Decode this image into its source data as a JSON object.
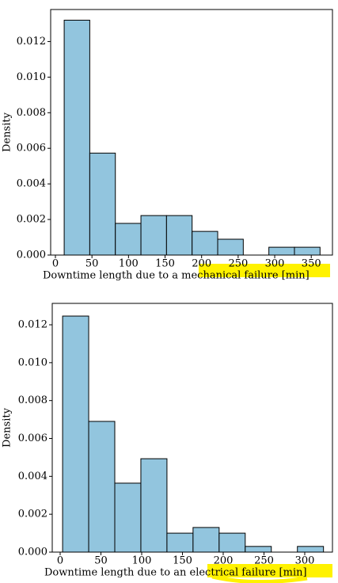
{
  "chart_data": [
    {
      "type": "histogram",
      "xlabel": "Downtime length due to a mechanical failure [min]",
      "ylabel": "Density",
      "bins": [
        12,
        47,
        82,
        117,
        152,
        187,
        222,
        257,
        292,
        327,
        362
      ],
      "values": [
        0.0132,
        0.00573,
        0.00178,
        0.00222,
        0.00222,
        0.00133,
        0.00089,
        0,
        0.00044,
        0.00044
      ],
      "color": "#92c5de",
      "edgecolor": "#000000",
      "xlim": [
        -6.5,
        379
      ],
      "xticks": [
        0,
        50,
        100,
        150,
        200,
        250,
        300,
        350
      ],
      "ylim": [
        0,
        0.0138
      ],
      "yticks": [
        {
          "value": 0,
          "label": "0.000"
        },
        {
          "value": 0.002,
          "label": "0.002"
        },
        {
          "value": 0.004,
          "label": "0.004"
        },
        {
          "value": 0.006,
          "label": "0.006"
        },
        {
          "value": 0.008,
          "label": "0.008"
        },
        {
          "value": 0.01,
          "label": "0.010"
        },
        {
          "value": 0.012,
          "label": "0.012"
        }
      ]
    },
    {
      "type": "histogram",
      "xlabel": "Downtime length due to an electrical failure [min]",
      "ylabel": "Density",
      "bins": [
        3,
        35,
        67,
        99,
        131,
        163,
        195,
        227,
        259,
        291,
        323
      ],
      "values": [
        0.01246,
        0.0069,
        0.00364,
        0.00493,
        0.001,
        0.0013,
        0.001,
        0.0003,
        0,
        0.0003
      ],
      "color": "#92c5de",
      "edgecolor": "#000000",
      "xlim": [
        -9.7,
        334
      ],
      "xticks": [
        0,
        50,
        100,
        150,
        200,
        250,
        300
      ],
      "ylim": [
        0,
        0.01313
      ],
      "yticks": [
        {
          "value": 0,
          "label": "0.000"
        },
        {
          "value": 0.002,
          "label": "0.002"
        },
        {
          "value": 0.004,
          "label": "0.004"
        },
        {
          "value": 0.006,
          "label": "0.006"
        },
        {
          "value": 0.008,
          "label": "0.008"
        },
        {
          "value": 0.01,
          "label": "0.010"
        },
        {
          "value": 0.012,
          "label": "0.012"
        }
      ]
    }
  ]
}
